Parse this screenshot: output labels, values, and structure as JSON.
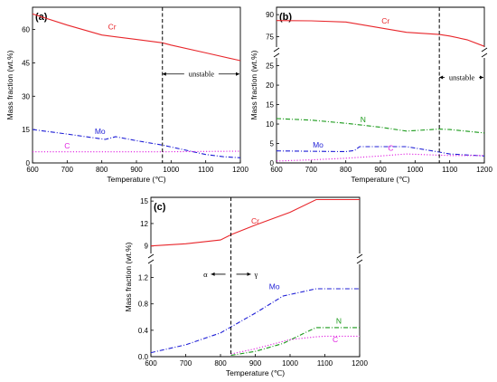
{
  "chart_data": [
    {
      "id": "a",
      "type": "line",
      "panel_label": "(a)",
      "xlabel": "Temperature (℃)",
      "ylabel": "Mass fraction (wt.%)",
      "xlim": [
        600,
        1200
      ],
      "ylim": [
        0,
        70
      ],
      "xticks": [
        600,
        700,
        800,
        900,
        1000,
        1100,
        1200
      ],
      "xtick_labels": [
        "600",
        "700",
        "800",
        "900",
        "1000",
        "1100",
        "1200"
      ],
      "yticks": [
        0,
        15,
        30,
        45,
        60
      ],
      "ytick_labels": [
        "0",
        "15",
        "30",
        "45",
        "60"
      ],
      "grid": false,
      "series": [
        {
          "name": "Cr",
          "color": "#e8262b",
          "dash": "solid",
          "label_at": [
            830,
            60
          ],
          "x": [
            600,
            700,
            800,
            900,
            975,
            1000,
            1100,
            1200
          ],
          "y": [
            67.0,
            62.0,
            57.5,
            55.5,
            54.0,
            53.0,
            49.5,
            46.0
          ]
        },
        {
          "name": "Mo",
          "color": "#1f1fd6",
          "dash": "dashdot",
          "label_at": [
            795,
            13
          ],
          "x": [
            600,
            700,
            800,
            810,
            840,
            900,
            975,
            1050,
            1100,
            1150,
            1200
          ],
          "y": [
            15.0,
            13.0,
            10.8,
            10.6,
            11.8,
            10.0,
            8.0,
            5.5,
            3.8,
            2.8,
            2.3
          ]
        },
        {
          "name": "C",
          "color": "#e020e0",
          "dash": "dot",
          "label_at": [
            700,
            6.5
          ],
          "x": [
            600,
            800,
            975,
            1200
          ],
          "y": [
            5.0,
            5.0,
            5.0,
            5.3
          ]
        }
      ],
      "annotations": {
        "vline_x": 975,
        "text": "unstable",
        "arrow_from": 975,
        "arrow_to": 1200,
        "arrow_y": 40
      }
    },
    {
      "id": "b",
      "type": "line",
      "panel_label": "(b)",
      "xlabel": "Temperature (℃)",
      "ylabel": "Mass fraction (wt.%)",
      "xlim": [
        600,
        1200
      ],
      "broken_axis": true,
      "ylim_lower": [
        0,
        27
      ],
      "ylim_upper": [
        68,
        95
      ],
      "xticks": [
        600,
        700,
        800,
        900,
        1000,
        1100,
        1200
      ],
      "xtick_labels": [
        "600",
        "700",
        "800",
        "900",
        "1000",
        "1100",
        "1200"
      ],
      "yticks_lower": [
        0,
        5,
        10,
        15,
        20,
        25
      ],
      "ytick_labels_lower": [
        "0",
        "5",
        "10",
        "15",
        "20",
        "25"
      ],
      "yticks_upper": [
        75,
        90
      ],
      "ytick_labels_upper": [
        "75",
        "90"
      ],
      "grid": false,
      "series": [
        {
          "name": "Cr",
          "color": "#e8262b",
          "dash": "solid",
          "label_at": [
            915,
            84
          ],
          "x": [
            600,
            700,
            800,
            900,
            975,
            1070,
            1100,
            1150,
            1200
          ],
          "y": [
            86.0,
            85.8,
            85.0,
            81.0,
            78.0,
            76.5,
            75.5,
            73.0,
            68.5
          ]
        },
        {
          "name": "N",
          "color": "#1a9a1a",
          "dash": "dashdot",
          "label_at": [
            850,
            10.5
          ],
          "x": [
            600,
            700,
            800,
            900,
            975,
            1070,
            1100,
            1200
          ],
          "y": [
            11.4,
            11.0,
            10.2,
            9.2,
            8.2,
            8.7,
            8.6,
            7.7
          ]
        },
        {
          "name": "Mo",
          "color": "#1f1fd6",
          "dash": "dashdot",
          "label_at": [
            720,
            4.0
          ],
          "x": [
            600,
            700,
            800,
            825,
            840,
            975,
            1070,
            1100,
            1200
          ],
          "y": [
            3.1,
            3.0,
            2.9,
            3.2,
            4.2,
            4.2,
            2.8,
            2.3,
            1.8
          ]
        },
        {
          "name": "C",
          "color": "#e020e0",
          "dash": "dot",
          "label_at": [
            930,
            3.2
          ],
          "x": [
            600,
            700,
            800,
            900,
            975,
            1070,
            1100,
            1200
          ],
          "y": [
            0.5,
            0.8,
            1.2,
            1.8,
            2.3,
            2.0,
            1.9,
            1.9
          ]
        }
      ],
      "annotations": {
        "vline_x": 1070,
        "text": "unstable",
        "arrow_from": 1070,
        "arrow_to": 1200,
        "arrow_y": 22
      }
    },
    {
      "id": "c",
      "type": "line",
      "panel_label": "(c)",
      "xlabel": "Temperature (℃)",
      "ylabel": "Mass fraction (wt.%)",
      "xlim": [
        600,
        1200
      ],
      "broken_axis": true,
      "ylim_lower": [
        0,
        1.4
      ],
      "ylim_upper": [
        8,
        15.5
      ],
      "xticks": [
        600,
        700,
        800,
        900,
        1000,
        1100,
        1200
      ],
      "xtick_labels": [
        "600",
        "700",
        "800",
        "900",
        "1000",
        "1100",
        "1200"
      ],
      "yticks_lower": [
        0,
        0.4,
        0.8,
        1.2
      ],
      "ytick_labels_lower": [
        "0.0",
        "0.4",
        "0.8",
        "1.2"
      ],
      "yticks_upper": [
        9,
        12,
        15
      ],
      "ytick_labels_upper": [
        "9",
        "12",
        "15"
      ],
      "grid": false,
      "series": [
        {
          "name": "Cr",
          "color": "#e8262b",
          "dash": "solid",
          "label_at": [
            900,
            12.0
          ],
          "x": [
            600,
            700,
            800,
            830,
            900,
            1000,
            1075,
            1100,
            1200
          ],
          "y": [
            9.0,
            9.3,
            9.8,
            10.5,
            11.8,
            13.5,
            15.2,
            15.2,
            15.2
          ]
        },
        {
          "name": "Mo",
          "color": "#1f1fd6",
          "dash": "dashdot",
          "label_at": [
            955,
            1.02
          ],
          "x": [
            600,
            700,
            800,
            830,
            900,
            980,
            1075,
            1100,
            1200
          ],
          "y": [
            0.06,
            0.18,
            0.36,
            0.45,
            0.66,
            0.92,
            1.03,
            1.03,
            1.03
          ]
        },
        {
          "name": "N",
          "color": "#1a9a1a",
          "dash": "dashdot",
          "label_at": [
            1140,
            0.5
          ],
          "x": [
            830,
            900,
            980,
            1050,
            1075,
            1100,
            1200
          ],
          "y": [
            0.02,
            0.08,
            0.2,
            0.38,
            0.44,
            0.44,
            0.44
          ]
        },
        {
          "name": "C",
          "color": "#e020e0",
          "dash": "dot",
          "label_at": [
            1130,
            0.22
          ],
          "x": [
            830,
            900,
            1000,
            1075,
            1100,
            1200
          ],
          "y": [
            0.04,
            0.12,
            0.26,
            0.3,
            0.31,
            0.31
          ]
        }
      ],
      "annotations": {
        "vline_x": 830,
        "left_text": "α",
        "right_text": "γ",
        "phase_arrow_y": 1.25
      }
    }
  ]
}
